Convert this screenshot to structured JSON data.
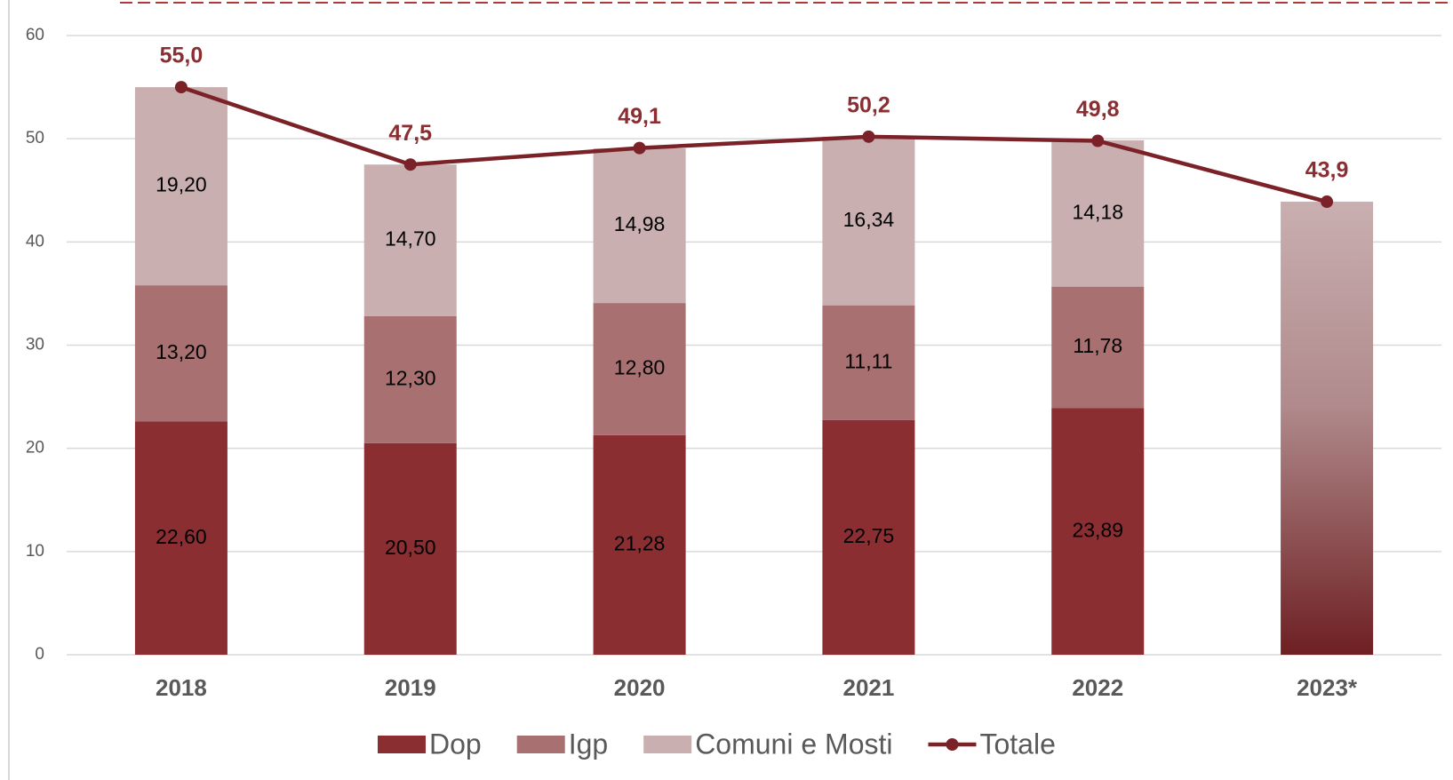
{
  "chart_data": {
    "type": "stacked-bar-line",
    "categories": [
      "2018",
      "2019",
      "2020",
      "2021",
      "2022",
      "2023*"
    ],
    "series": [
      {
        "name": "Dop",
        "type": "bar",
        "color": "#8b2e32",
        "values": [
          22.6,
          20.5,
          21.28,
          22.75,
          23.89,
          null
        ],
        "value_labels": [
          "22,60",
          "20,50",
          "21,28",
          "22,75",
          "23,89",
          null
        ]
      },
      {
        "name": "Igp",
        "type": "bar",
        "color": "#a87070",
        "values": [
          13.2,
          12.3,
          12.8,
          11.11,
          11.78,
          null
        ],
        "value_labels": [
          "13,20",
          "12,30",
          "12,80",
          "11,11",
          "11,78",
          null
        ]
      },
      {
        "name": "Comuni e Mosti",
        "type": "bar",
        "color": "#c9afb0",
        "values": [
          19.2,
          14.7,
          14.98,
          16.34,
          14.18,
          null
        ],
        "value_labels": [
          "19,20",
          "14,70",
          "14,98",
          "16,34",
          "14,18",
          null
        ]
      },
      {
        "name": "Totale",
        "type": "line",
        "color": "#7b2228",
        "values": [
          55.0,
          47.5,
          49.1,
          50.2,
          49.8,
          43.9
        ],
        "value_labels": [
          "55,0",
          "47,5",
          "49,1",
          "50,2",
          "49,8",
          "43,9"
        ]
      }
    ],
    "ylim": [
      0,
      60
    ],
    "yticks": [
      0,
      10,
      20,
      30,
      40,
      50,
      60
    ],
    "grid": true,
    "legend": "bottom"
  }
}
